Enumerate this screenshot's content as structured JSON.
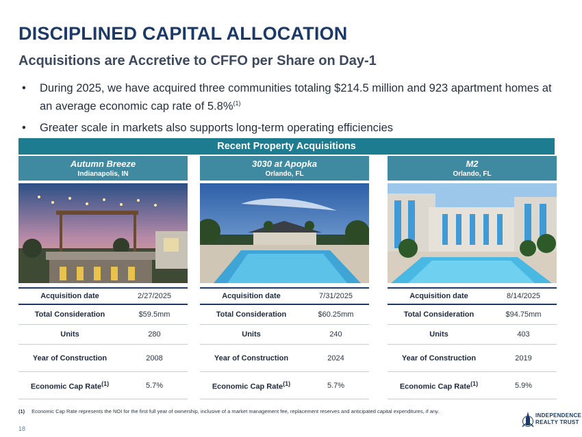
{
  "title": "DISCIPLINED CAPITAL ALLOCATION",
  "subtitle": "Acquisitions are Accretive to CFFO per Share on Day-1",
  "bullets": [
    {
      "text": "During 2025, we have acquired three communities totaling $214.5 million and 923 apartment homes at an average economic cap rate of 5.8%",
      "sup": "(1)"
    },
    {
      "text": "Greater scale in markets also supports long-term operating efficiencies",
      "sup": ""
    }
  ],
  "banner": "Recent Property Acquisitions",
  "properties": [
    {
      "name": "Autumn Breeze",
      "city": "Indianapolis, IN",
      "rows": [
        {
          "k": "Acquisition date",
          "v": "2/27/2025"
        },
        {
          "k": "Total Consideration",
          "v": "$59.5mm"
        },
        {
          "k": "Units",
          "v": "280"
        },
        {
          "k": "Year of Construction",
          "v": "2008"
        },
        {
          "k": "Economic Cap Rate",
          "v": "5.7%"
        }
      ]
    },
    {
      "name": "3030 at Apopka",
      "city": "Orlando, FL",
      "rows": [
        {
          "k": "Acquisition date",
          "v": "7/31/2025"
        },
        {
          "k": "Total Consideration",
          "v": "$60.25mm"
        },
        {
          "k": "Units",
          "v": "240"
        },
        {
          "k": "Year of Construction",
          "v": "2024"
        },
        {
          "k": "Economic Cap Rate",
          "v": "5.7%"
        }
      ]
    },
    {
      "name": "M2",
      "city": "Orlando, FL",
      "rows": [
        {
          "k": "Acquisition date",
          "v": "8/14/2025"
        },
        {
          "k": "Total Consideration",
          "v": "$94.75mm"
        },
        {
          "k": "Units",
          "v": "403"
        },
        {
          "k": "Year of Construction",
          "v": "2019"
        },
        {
          "k": "Economic Cap Rate",
          "v": "5.9%"
        }
      ]
    }
  ],
  "cap_rate_sup": "(1)",
  "footnote": {
    "num": "(1)",
    "text": "Economic Cap Rate represents the NOI for the first full year of ownership, inclusive of a market management fee, replacement reserves and anticipated capital expenditures, if any."
  },
  "page_number": "18",
  "logo": {
    "line1": "INDEPENDENCE",
    "line2": "REALTY TRUST"
  },
  "colors": {
    "navy": "#1d3a66",
    "banner": "#1d7c8f",
    "col_header": "#3f8aa0"
  }
}
